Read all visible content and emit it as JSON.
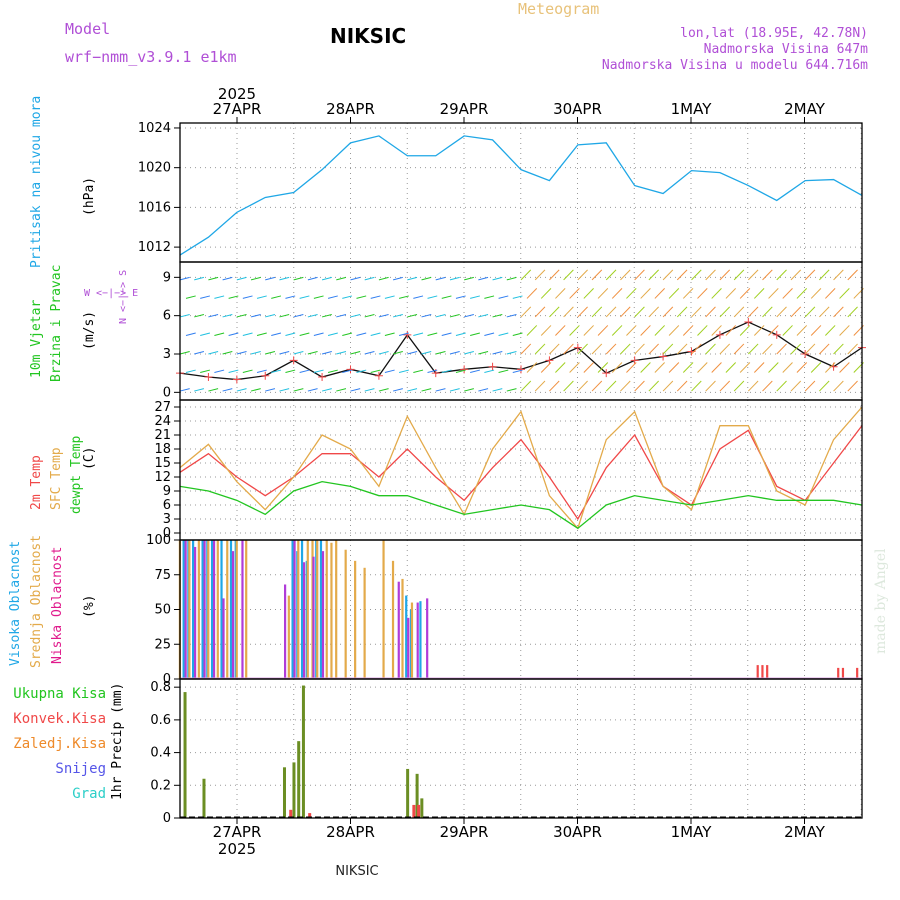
{
  "header": {
    "model_label": "Model",
    "model_value": "wrf−nmm_v3.9.1 e1km",
    "title": "NIKSIC",
    "product": "Meteogram",
    "lonlat": "lon,lat (18.95E, 42.78N)",
    "elevation": "Nadmorska Visina 647m",
    "model_elevation": "Nadmorska Visina u modelu 644.716m"
  },
  "top_axis": {
    "year": "2025",
    "dates": [
      "27APR",
      "28APR",
      "29APR",
      "30APR",
      "1MAY",
      "2MAY"
    ]
  },
  "bottom_axis": {
    "year": "2025",
    "dates": [
      "27APR",
      "28APR",
      "29APR",
      "30APR",
      "1MAY",
      "2MAY"
    ],
    "station": "NIKSIC"
  },
  "credit": "made by Angel",
  "colors": {
    "pressure": "#1fa7e6",
    "t2m": "#f04848",
    "tsfc": "#e3aa4a",
    "dew": "#22c520",
    "hi_cloud": "#1fa7e6",
    "mid_cloud": "#e3aa4a",
    "low_cloud": "#b03cd8",
    "total_precip": "#6b8e23",
    "conv_precip": "#f04848",
    "grid": "#999999"
  },
  "panels": {
    "pressure": {
      "label_main": "Pritisak na nivou mora",
      "unit": "(hPa)"
    },
    "wind": {
      "label_main": "10m Vjetar",
      "label_sub": "Brzina i Pravac",
      "unit": "(m/s)",
      "compass": "W <−|−> E",
      "compass_vert": "N <−|−> S"
    },
    "temp": {
      "label_t2m": "2m Temp",
      "label_sfc": "SFC Temp",
      "label_dew": "dewpt Temp",
      "unit": "(C)"
    },
    "cloud": {
      "label_hi": "Visoka Oblacnost",
      "label_mid": "Srednja Oblacnost",
      "label_low": "Niska Oblacnost",
      "unit": "(%)"
    },
    "precip": {
      "label_total": "Ukupna Kisa",
      "label_conv": "Konvek.Kisa",
      "label_frz": "Zaledj.Kisa",
      "label_snow": "Snijeg",
      "label_hail": "Grad",
      "unit": "1hr Precip (mm)"
    }
  },
  "chart_data": [
    {
      "type": "line",
      "title": "",
      "ylabel": "(hPa)",
      "x_hours": [
        0,
        6,
        12,
        18,
        24,
        30,
        36,
        42,
        48,
        54,
        60,
        66,
        72,
        78,
        84,
        90,
        96,
        102,
        108,
        114,
        120,
        126,
        132,
        138,
        144
      ],
      "ylim": [
        1010.5,
        1024.5
      ],
      "yticks": [
        1012,
        1016,
        1020,
        1024
      ],
      "series": [
        {
          "name": "Pritisak na nivou mora",
          "values": [
            1011.2,
            1013.0,
            1015.5,
            1017.0,
            1017.5,
            1019.8,
            1022.5,
            1023.2,
            1021.2,
            1021.2,
            1023.2,
            1022.8,
            1019.8,
            1018.7,
            1022.3,
            1022.5,
            1018.2,
            1017.4,
            1019.7,
            1019.5,
            1018.2,
            1016.7,
            1018.7,
            1018.8,
            1017.2
          ]
        }
      ]
    },
    {
      "type": "line",
      "title": "",
      "ylabel": "(m/s)",
      "x_hours": [
        0,
        6,
        12,
        18,
        24,
        30,
        36,
        42,
        48,
        54,
        60,
        66,
        72,
        78,
        84,
        90,
        96,
        102,
        108,
        114,
        120,
        126,
        132,
        138,
        144
      ],
      "ylim": [
        -0.6,
        10.2
      ],
      "yticks": [
        0,
        3,
        6,
        9
      ],
      "series": [
        {
          "name": "",
          "values": [
            1.5,
            1.2,
            1.0,
            1.3,
            2.5,
            1.2,
            1.8,
            1.3,
            4.5,
            1.5,
            1.8,
            2.0,
            1.8,
            2.5,
            3.5,
            1.5,
            2.5,
            2.8,
            3.2,
            4.5,
            5.5,
            4.5,
            3.0,
            2.0,
            3.5
          ]
        }
      ]
    },
    {
      "type": "line",
      "title": "",
      "ylabel": "(C)",
      "x_hours": [
        0,
        6,
        12,
        18,
        24,
        30,
        36,
        42,
        48,
        54,
        60,
        66,
        72,
        78,
        84,
        90,
        96,
        102,
        108,
        114,
        120,
        126,
        132,
        138,
        144
      ],
      "ylim": [
        -1.5,
        28.5
      ],
      "yticks": [
        0,
        3,
        6,
        9,
        12,
        15,
        18,
        21,
        24,
        27
      ],
      "series": [
        {
          "name": "2m Temp",
          "values": [
            13,
            17,
            12,
            8,
            12,
            17,
            17,
            12,
            18,
            12,
            7,
            14,
            20,
            12,
            3,
            14,
            21,
            10,
            6,
            18,
            22,
            10,
            7,
            15,
            23
          ]
        },
        {
          "name": "SFC Temp",
          "values": [
            14,
            19,
            11,
            5,
            12,
            21,
            18,
            10,
            25,
            14,
            4,
            18,
            26,
            8,
            1,
            20,
            26,
            10,
            5,
            23,
            23,
            9,
            6,
            20,
            27
          ]
        },
        {
          "name": "dewpt Temp",
          "values": [
            10,
            9,
            7,
            4,
            9,
            11,
            10,
            8,
            8,
            6,
            4,
            5,
            6,
            5,
            1,
            6,
            8,
            7,
            6,
            7,
            8,
            7,
            7,
            7,
            6
          ]
        }
      ]
    },
    {
      "type": "bar",
      "title": "",
      "ylabel": "(%)",
      "ylim": [
        0,
        100
      ],
      "yticks": [
        0,
        25,
        50,
        75,
        100
      ],
      "series": [
        {
          "name": "Visoka Oblacnost",
          "points": [
            [
              1,
              100
            ],
            [
              2,
              100
            ],
            [
              3,
              100
            ],
            [
              5,
              100
            ],
            [
              6,
              100
            ],
            [
              7,
              100
            ],
            [
              9,
              100
            ],
            [
              11,
              100
            ],
            [
              12,
              100
            ],
            [
              24,
              100
            ],
            [
              25,
              92
            ],
            [
              26,
              100
            ],
            [
              27,
              85
            ],
            [
              29,
              100
            ],
            [
              30,
              100
            ],
            [
              48,
              60
            ],
            [
              49,
              50
            ],
            [
              51,
              56
            ]
          ]
        },
        {
          "name": "Srednja Oblacnost",
          "points": [
            [
              0,
              100
            ],
            [
              2,
              100
            ],
            [
              4,
              100
            ],
            [
              6,
              100
            ],
            [
              8,
              100
            ],
            [
              10,
              100
            ],
            [
              12,
              100
            ],
            [
              14,
              100
            ],
            [
              23,
              60
            ],
            [
              25,
              100
            ],
            [
              27,
              100
            ],
            [
              28,
              100
            ],
            [
              29,
              100
            ],
            [
              31,
              100
            ],
            [
              32,
              98
            ],
            [
              33,
              100
            ],
            [
              35,
              93
            ],
            [
              37,
              85
            ],
            [
              39,
              80
            ],
            [
              43,
              100
            ],
            [
              45,
              85
            ],
            [
              47,
              72
            ],
            [
              49,
              55
            ]
          ]
        },
        {
          "name": "Niska Oblacnost",
          "points": [
            [
              1,
              100
            ],
            [
              3,
              95
            ],
            [
              5,
              100
            ],
            [
              7,
              100
            ],
            [
              9,
              58
            ],
            [
              11,
              92
            ],
            [
              13,
              100
            ],
            [
              22,
              68
            ],
            [
              24,
              100
            ],
            [
              26,
              84
            ],
            [
              28,
              88
            ],
            [
              30,
              92
            ],
            [
              46,
              70
            ],
            [
              48,
              44
            ],
            [
              50,
              55
            ],
            [
              52,
              58
            ]
          ]
        },
        {
          "name": "",
          "points": [
            [
              122,
              10
            ],
            [
              123,
              10
            ],
            [
              124,
              10
            ],
            [
              139,
              8
            ],
            [
              140,
              8
            ],
            [
              143,
              8
            ]
          ]
        }
      ]
    },
    {
      "type": "bar",
      "title": "",
      "ylabel": "1hr Precip (mm)",
      "ylim": [
        0,
        0.85
      ],
      "yticks": [
        0,
        0.2,
        0.4,
        0.6,
        0.8
      ],
      "series": [
        {
          "name": "Ukupna Kisa",
          "points": [
            [
              1,
              0.77
            ],
            [
              5,
              0.24
            ],
            [
              22,
              0.31
            ],
            [
              24,
              0.34
            ],
            [
              25,
              0.47
            ],
            [
              26,
              0.81
            ],
            [
              48,
              0.3
            ],
            [
              50,
              0.27
            ],
            [
              51,
              0.12
            ]
          ]
        },
        {
          "name": "Konvek.Kisa",
          "points": [
            [
              23,
              0.05
            ],
            [
              27,
              0.03
            ],
            [
              49,
              0.08
            ],
            [
              50,
              0.08
            ]
          ]
        }
      ]
    }
  ]
}
